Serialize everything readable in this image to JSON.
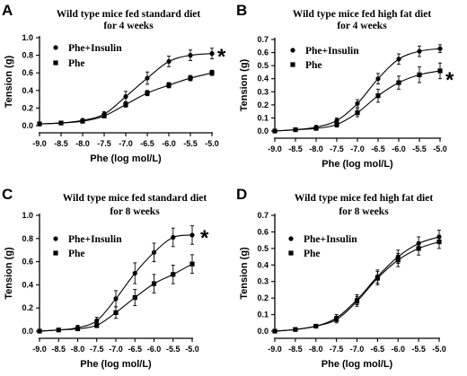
{
  "chart_data": [
    {
      "type": "line",
      "panel": "A",
      "title": [
        "Wild type mice fed standard diet",
        "for 4 weeks"
      ],
      "xlabel": "Phe (log mol/L)",
      "ylabel": "Tension (g)",
      "x": [
        -9.0,
        -8.5,
        -8.0,
        -7.5,
        -7.0,
        -6.5,
        -6.0,
        -5.5,
        -5.0
      ],
      "x_tick_labels": [
        "-9.0",
        "-8.5",
        "-8.0",
        "-7.5",
        "-7.0",
        "-6.5",
        "-6.0",
        "-5.5",
        "-5.0"
      ],
      "y_ticks": [
        "0.0",
        "0.2",
        "0.4",
        "0.6",
        "0.8",
        "1.0"
      ],
      "xlim": [
        -9.0,
        -5.0
      ],
      "ylim": [
        0,
        1.0
      ],
      "significance": "*",
      "series": [
        {
          "name": "Phe+Insulin",
          "marker": "circle",
          "values": [
            0.02,
            0.03,
            0.06,
            0.13,
            0.33,
            0.54,
            0.73,
            0.8,
            0.82
          ],
          "errors": [
            0.01,
            0.01,
            0.02,
            0.03,
            0.06,
            0.07,
            0.06,
            0.06,
            0.06
          ]
        },
        {
          "name": "Phe",
          "marker": "square",
          "values": [
            0.02,
            0.03,
            0.05,
            0.11,
            0.24,
            0.37,
            0.46,
            0.54,
            0.6
          ],
          "errors": [
            0.01,
            0.01,
            0.02,
            0.02,
            0.03,
            0.03,
            0.03,
            0.03,
            0.03
          ]
        }
      ]
    },
    {
      "type": "line",
      "panel": "B",
      "title": [
        "Wild type mice fed high fat diet",
        "for 4 weeks"
      ],
      "xlabel": "Phe (log mol/L)",
      "ylabel": "Tension (g)",
      "x": [
        -9.0,
        -8.5,
        -8.0,
        -7.5,
        -7.0,
        -6.5,
        -6.0,
        -5.5,
        -5.0
      ],
      "x_tick_labels": [
        "-9.0",
        "-8.5",
        "-8.0",
        "-7.5",
        "-7.0",
        "-6.5",
        "-6.0",
        "-5.5",
        "-5.0"
      ],
      "y_ticks": [
        "0.0",
        "0.1",
        "0.2",
        "0.3",
        "0.4",
        "0.5",
        "0.6",
        "0.7"
      ],
      "xlim": [
        -9.0,
        -5.0
      ],
      "ylim": [
        0,
        0.7
      ],
      "significance": "*",
      "series": [
        {
          "name": "Phe+Insulin",
          "marker": "circle",
          "values": [
            0.0,
            0.01,
            0.03,
            0.08,
            0.21,
            0.4,
            0.55,
            0.61,
            0.63
          ],
          "errors": [
            0.01,
            0.01,
            0.01,
            0.02,
            0.03,
            0.04,
            0.04,
            0.04,
            0.03
          ]
        },
        {
          "name": "Phe",
          "marker": "square",
          "values": [
            0.0,
            0.01,
            0.02,
            0.05,
            0.14,
            0.27,
            0.37,
            0.43,
            0.46
          ],
          "errors": [
            0.01,
            0.01,
            0.01,
            0.02,
            0.03,
            0.05,
            0.05,
            0.06,
            0.06
          ]
        }
      ]
    },
    {
      "type": "line",
      "panel": "C",
      "title": [
        "Wild type mice fed standard diet",
        "for 8 weeks"
      ],
      "xlabel": "Phe (log mol/L)",
      "ylabel": "Tension (g)",
      "x": [
        -9.0,
        -8.5,
        -8.0,
        -7.5,
        -7.0,
        -6.5,
        -6.0,
        -5.5,
        -5.0
      ],
      "x_tick_labels": [
        "-9.0",
        "-8.5",
        "-8.0",
        "-7.5",
        "-7.0",
        "-6.5",
        "-6.0",
        "-5.5",
        "-5.0"
      ],
      "y_ticks": [
        "0.0",
        "0.2",
        "0.4",
        "0.6",
        "0.8",
        "1.0"
      ],
      "xlim": [
        -9.0,
        -5.0
      ],
      "ylim": [
        0,
        1.0
      ],
      "significance": "*",
      "series": [
        {
          "name": "Phe+Insulin",
          "marker": "circle",
          "values": [
            0.0,
            0.01,
            0.03,
            0.09,
            0.28,
            0.5,
            0.68,
            0.81,
            0.83
          ],
          "errors": [
            0.01,
            0.01,
            0.02,
            0.03,
            0.07,
            0.09,
            0.08,
            0.08,
            0.08
          ]
        },
        {
          "name": "Phe",
          "marker": "square",
          "values": [
            0.0,
            0.01,
            0.02,
            0.05,
            0.16,
            0.29,
            0.41,
            0.49,
            0.58
          ],
          "errors": [
            0.01,
            0.01,
            0.01,
            0.02,
            0.05,
            0.07,
            0.08,
            0.08,
            0.08
          ]
        }
      ]
    },
    {
      "type": "line",
      "panel": "D",
      "title": [
        "Wild type mice fed high fat diet",
        "for 8 weeks"
      ],
      "xlabel": "Phe (log mol/L)",
      "ylabel": "Tension (g)",
      "x": [
        -9.0,
        -8.5,
        -8.0,
        -7.5,
        -7.0,
        -6.5,
        -6.0,
        -5.5,
        -5.0
      ],
      "x_tick_labels": [
        "-9.0",
        "-8.5",
        "-8.0",
        "-7.5",
        "-7.0",
        "-6.5",
        "-6.0",
        "-5.5",
        "-5.0"
      ],
      "y_ticks": [
        "0.0",
        "0.1",
        "0.2",
        "0.3",
        "0.4",
        "0.5",
        "0.6",
        "0.7"
      ],
      "xlim": [
        -9.0,
        -5.0
      ],
      "ylim": [
        0,
        0.7
      ],
      "significance": "",
      "series": [
        {
          "name": "Phe+Insulin",
          "marker": "circle",
          "values": [
            0.0,
            0.01,
            0.03,
            0.08,
            0.19,
            0.33,
            0.45,
            0.53,
            0.57
          ],
          "errors": [
            0.01,
            0.01,
            0.01,
            0.02,
            0.03,
            0.04,
            0.04,
            0.04,
            0.04
          ]
        },
        {
          "name": "Phe",
          "marker": "square",
          "values": [
            0.0,
            0.01,
            0.03,
            0.07,
            0.18,
            0.32,
            0.43,
            0.5,
            0.54
          ],
          "errors": [
            0.01,
            0.01,
            0.01,
            0.02,
            0.03,
            0.04,
            0.04,
            0.04,
            0.04
          ]
        }
      ]
    }
  ]
}
